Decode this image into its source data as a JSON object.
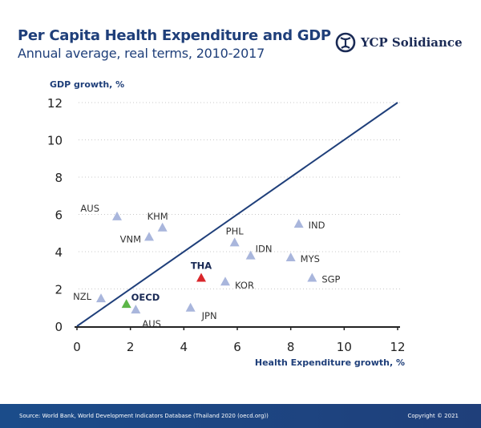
{
  "header": {
    "title": "Per Capita Health Expenditure and GDP",
    "subtitle": "Annual average, real terms, 2010-2017"
  },
  "logo": {
    "text": "YCP Solidiance",
    "icon": "ycp-emblem-icon"
  },
  "footer": {
    "source": "Source: World Bank, World Development Indicators Database (Thailand 2020 (oecd.org))",
    "copyright": "Copyright © 2021"
  },
  "colors": {
    "primary": "#1f3f7a",
    "point": "#a9b6dc",
    "highlight": "#d9262b",
    "oecd": "#5cb648"
  },
  "chart_data": {
    "type": "scatter",
    "xlabel": "Health Expenditure growth, %",
    "ylabel": "GDP growth, %",
    "xlim": [
      0,
      12
    ],
    "ylim": [
      0,
      12
    ],
    "xticks": [
      "0",
      "2",
      "4",
      "6",
      "8",
      "10",
      "12"
    ],
    "yticks": [
      "0",
      "2",
      "4",
      "6",
      "8",
      "10",
      "12"
    ],
    "grid": "horizontal dotted",
    "reference_line": {
      "from": [
        0,
        0
      ],
      "to": [
        12,
        12
      ]
    },
    "points": [
      {
        "label": "AUS",
        "x": 1.5,
        "y": 5.9,
        "color": "#a9b6dc"
      },
      {
        "label": "KHM",
        "x": 3.2,
        "y": 5.3,
        "color": "#a9b6dc"
      },
      {
        "label": "VNM",
        "x": 2.7,
        "y": 4.8,
        "color": "#a9b6dc"
      },
      {
        "label": "PHL",
        "x": 5.9,
        "y": 4.5,
        "color": "#a9b6dc"
      },
      {
        "label": "IDN",
        "x": 6.5,
        "y": 3.8,
        "color": "#a9b6dc"
      },
      {
        "label": "IND",
        "x": 8.3,
        "y": 5.5,
        "color": "#a9b6dc"
      },
      {
        "label": "MYS",
        "x": 8.0,
        "y": 3.7,
        "color": "#a9b6dc"
      },
      {
        "label": "SGP",
        "x": 8.8,
        "y": 2.6,
        "color": "#a9b6dc"
      },
      {
        "label": "THA",
        "x": 4.65,
        "y": 2.6,
        "color": "#d9262b",
        "bold": true
      },
      {
        "label": "KOR",
        "x": 5.55,
        "y": 2.4,
        "color": "#a9b6dc"
      },
      {
        "label": "NZL",
        "x": 0.9,
        "y": 1.5,
        "color": "#a9b6dc"
      },
      {
        "label": "OECD",
        "x": 1.85,
        "y": 1.2,
        "color": "#5cb648",
        "bold": true
      },
      {
        "label": "AUS",
        "x": 2.2,
        "y": 0.9,
        "color": "#a9b6dc"
      },
      {
        "label": "JPN",
        "x": 4.25,
        "y": 1.0,
        "color": "#a9b6dc"
      }
    ]
  }
}
